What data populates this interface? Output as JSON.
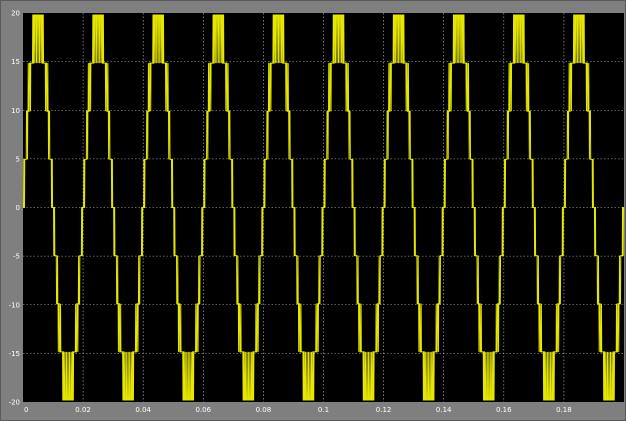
{
  "chart_data": {
    "type": "line",
    "title": "",
    "xlabel": "",
    "ylabel": "",
    "xlim": [
      0,
      0.2
    ],
    "ylim": [
      -20,
      20
    ],
    "grid": true,
    "legend": "none",
    "x_ticks": [
      {
        "value": 0,
        "label": "0"
      },
      {
        "value": 0.02,
        "label": "0.02"
      },
      {
        "value": 0.04,
        "label": "0.04"
      },
      {
        "value": 0.06,
        "label": "0.06"
      },
      {
        "value": 0.08,
        "label": "0.08"
      },
      {
        "value": 0.1,
        "label": "0.1"
      },
      {
        "value": 0.12,
        "label": "0.12"
      },
      {
        "value": 0.14,
        "label": "0.14"
      },
      {
        "value": 0.16,
        "label": "0.16"
      },
      {
        "value": 0.18,
        "label": "0.18"
      }
    ],
    "y_ticks": [
      {
        "value": 20,
        "label": "20"
      },
      {
        "value": 15,
        "label": "15"
      },
      {
        "value": 10,
        "label": "10"
      },
      {
        "value": 5,
        "label": "5"
      },
      {
        "value": 0,
        "label": "0"
      },
      {
        "value": -5,
        "label": "-5"
      },
      {
        "value": -10,
        "label": "-10"
      },
      {
        "value": -15,
        "label": "-15"
      },
      {
        "value": -20,
        "label": "-20"
      }
    ],
    "series": [
      {
        "color": "#e6e600",
        "waveform": "multilevel inverter output, 50 Hz fundamental with PWM switching between levels 0, ±5, ±10, ±15, ±20",
        "frequency_hz": 50,
        "peak": 19.8,
        "points": []
      }
    ],
    "colors": {
      "window_background": "#7f7f7f",
      "axes_background": "#000000",
      "grid": "#bdbdbd",
      "trace": "#e6e600",
      "tick_text": "#ffffff"
    }
  }
}
